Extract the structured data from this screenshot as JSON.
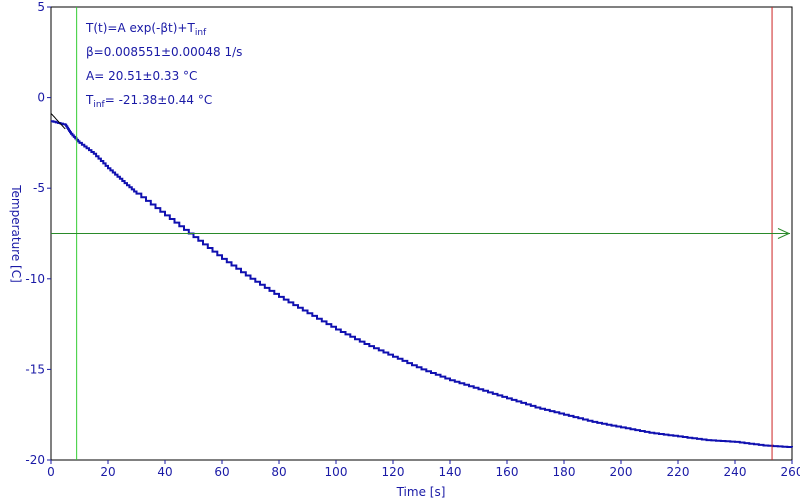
{
  "chart_data": {
    "type": "line",
    "title": "",
    "xlabel": "Time [s]",
    "ylabel": "Temperature [C]",
    "xlim": [
      0,
      260
    ],
    "ylim": [
      -20,
      5
    ],
    "xticks": [
      0,
      20,
      40,
      60,
      80,
      100,
      120,
      140,
      160,
      180,
      200,
      220,
      240,
      260
    ],
    "yticks": [
      5,
      0,
      -5,
      -10,
      -15,
      -20
    ],
    "grid": false,
    "legend": "none",
    "colors": {
      "data": "#1010b0",
      "fit": "#000000",
      "axis": "#1a1aa6",
      "cursor_green": "#33cc33",
      "cursor_red": "#cc2222",
      "hline": "#2a8a2a"
    },
    "fit": {
      "model": "exponential",
      "A": 20.51,
      "beta": 0.008551,
      "T_inf": -21.38,
      "x_range": [
        0,
        5
      ]
    },
    "fit_text": {
      "equation": "T(t)=A exp(-βt)+T",
      "equation_sub": "inf",
      "beta_line": "β=0.008551±0.00048 1/s",
      "a_line": "A= 20.51±0.33 °C",
      "tinf_main": "T",
      "tinf_sub": "inf",
      "tinf_rest": "= -21.38±0.44 °C"
    },
    "series": [
      {
        "x": [
          0,
          5,
          7,
          10,
          15,
          20,
          25,
          30,
          40,
          50,
          60,
          70,
          80,
          90,
          100,
          110,
          120,
          130,
          140,
          150,
          160,
          170,
          180,
          190,
          200,
          210,
          220,
          230,
          240,
          250,
          260
        ],
        "values": [
          -1.3,
          -1.5,
          -2.0,
          -2.5,
          -3.1,
          -3.9,
          -4.6,
          -5.3,
          -6.5,
          -7.7,
          -8.9,
          -10.0,
          -11.0,
          -11.9,
          -12.8,
          -13.6,
          -14.3,
          -15.0,
          -15.6,
          -16.1,
          -16.6,
          -17.1,
          -17.5,
          -17.9,
          -18.2,
          -18.5,
          -18.7,
          -18.9,
          -19.0,
          -19.2,
          -19.3
        ]
      }
    ],
    "cursors": {
      "vertical_green_x": 9,
      "vertical_red_x": 253,
      "horizontal_y": -7.5
    }
  }
}
